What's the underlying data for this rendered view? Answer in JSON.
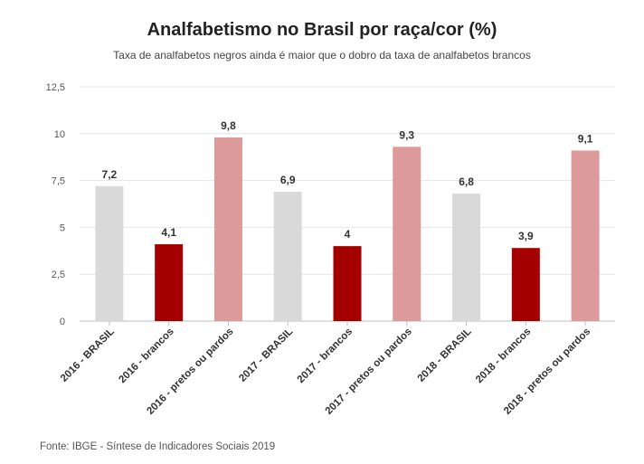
{
  "title": "Analfabetismo no Brasil por raça/cor (%)",
  "subtitle": "Taxa de analfabetos negros ainda é maior que o dobro da taxa de analfabetos brancos",
  "source": "Fonte: IBGE - Síntese de Indicadores Sociais 2019",
  "chart_data": {
    "type": "bar",
    "title": "Analfabetismo no Brasil por raça/cor (%)",
    "subtitle": "Taxa de analfabetos negros ainda é maior que o dobro da taxa de analfabetos brancos",
    "categories": [
      "2016 - BRASIL",
      "2016 - brancos",
      "2016 - pretos ou pardos",
      "2017 - BRASIL",
      "2017 - brancos",
      "2017 - pretos ou pardos",
      "2018 - BRASIL",
      "2018 - brancos",
      "2018 - pretos ou pardos"
    ],
    "values": [
      7.2,
      4.1,
      9.8,
      6.9,
      4,
      9.3,
      6.8,
      3.9,
      9.1
    ],
    "value_labels": [
      "7,2",
      "4,1",
      "9,8",
      "6,9",
      "4",
      "9,3",
      "6,8",
      "3,9",
      "9,1"
    ],
    "colors": [
      "#d9d9d9",
      "#a50000",
      "#dd9a9a",
      "#d9d9d9",
      "#a50000",
      "#dd9a9a",
      "#d9d9d9",
      "#a50000",
      "#dd9a9a"
    ],
    "yticks": [
      0,
      2.5,
      5,
      7.5,
      10,
      12.5
    ],
    "ytick_labels": [
      "0",
      "2,5",
      "5",
      "7,5",
      "10",
      "12,5"
    ],
    "ylim": [
      0,
      12.5
    ],
    "xlabel": "",
    "ylabel": "",
    "grid": true
  }
}
